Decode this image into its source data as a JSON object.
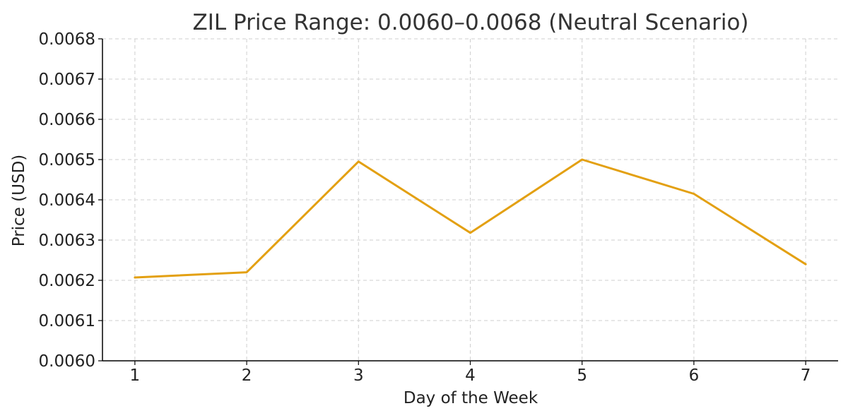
{
  "chart_data": {
    "type": "line",
    "title": "ZIL Price Range: 0.0060–0.0068 (Neutral Scenario)",
    "xlabel": "Day of the Week",
    "ylabel": "Price (USD)",
    "x": [
      1,
      2,
      3,
      4,
      5,
      6,
      7
    ],
    "x_tick_labels": [
      "1",
      "2",
      "3",
      "4",
      "5",
      "6",
      "7"
    ],
    "y_tick_labels": [
      "0.0060",
      "0.0061",
      "0.0062",
      "0.0063",
      "0.0064",
      "0.0065",
      "0.0066",
      "0.0067",
      "0.0068"
    ],
    "ylim": [
      0.006,
      0.0068
    ],
    "grid": true,
    "legend": "none",
    "series": [
      {
        "values": [
          0.006207,
          0.00622,
          0.006495,
          0.006318,
          0.0065,
          0.006415,
          0.00624
        ],
        "color": "#E3A012"
      }
    ]
  }
}
